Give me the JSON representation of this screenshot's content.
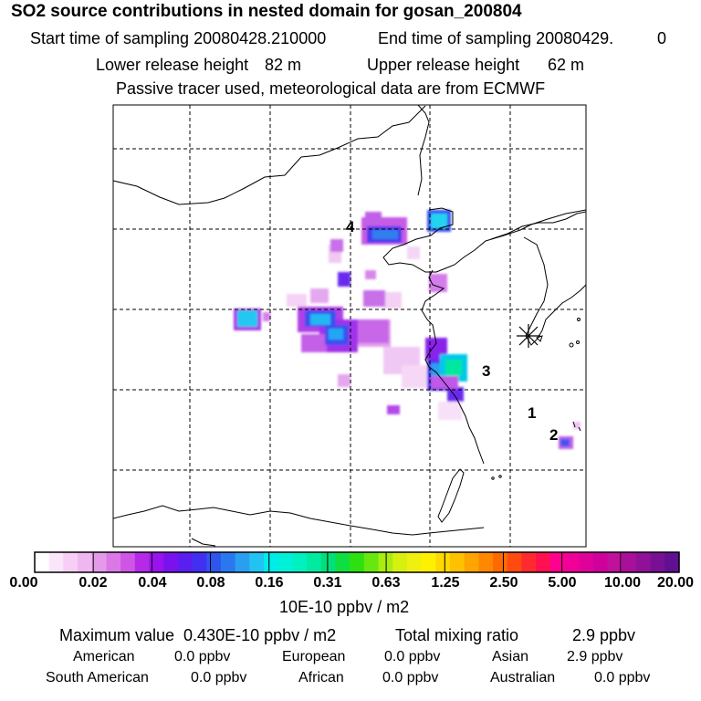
{
  "header": {
    "title": "SO2 source contributions in nested domain for gosan_200804",
    "start_label": "Start time of sampling 20080428.210000",
    "end_label": "End time of sampling 20080429.",
    "end_suffix": "0",
    "lower_label": "Lower release height",
    "lower_value": "82 m",
    "upper_label": "Upper release height",
    "upper_value": "62 m",
    "note": "Passive tracer used, meteorological data are from ECMWF"
  },
  "map": {
    "region_labels": [
      "1",
      "2",
      "3",
      "4"
    ]
  },
  "colorbar": {
    "ticks": [
      "0.00",
      "0.02",
      "0.04",
      "0.08",
      "0.16",
      "0.31",
      "0.63",
      "1.25",
      "2.50",
      "5.00",
      "10.00",
      "20.00"
    ],
    "unit": "10E-10 ppbv / m2",
    "colors": [
      "#ffffff",
      "#fbe5fb",
      "#f6cef6",
      "#efb6ef",
      "#e59ae9",
      "#db78e6",
      "#cf55e6",
      "#b52ae8",
      "#9a12ec",
      "#7a12ee",
      "#5a1ef0",
      "#4230f2",
      "#2f55ee",
      "#2a78f0",
      "#2a9ff2",
      "#22c2f2",
      "#00ecea",
      "#00f0d8",
      "#00f0c0",
      "#00eaa0",
      "#00e07a",
      "#10de40",
      "#2ee010",
      "#68e610",
      "#a8ec10",
      "#d8f010",
      "#f0f010",
      "#fff000",
      "#ffd800",
      "#ffc000",
      "#ffa400",
      "#ff8800",
      "#ff6a00",
      "#ff4a10",
      "#ff2a30",
      "#ff1050",
      "#ff0090",
      "#f00098",
      "#e0009a",
      "#d0009c",
      "#c0109c",
      "#a8109a",
      "#901098",
      "#781094",
      "#601090"
    ]
  },
  "footer": {
    "max_label": "Maximum value  0.430E-10 ppbv / m2",
    "total_label": "Total mixing ratio",
    "total_value": "2.9 ppbv",
    "regions": [
      {
        "name": "American",
        "value": "0.0 ppbv"
      },
      {
        "name": "European",
        "value": "0.0 ppbv"
      },
      {
        "name": "Asian",
        "value": "2.9 ppbv"
      },
      {
        "name": "South American",
        "value": "0.0 ppbv"
      },
      {
        "name": "African",
        "value": "0.0 ppbv"
      },
      {
        "name": "Australian",
        "value": "0.0 ppbv"
      }
    ]
  }
}
